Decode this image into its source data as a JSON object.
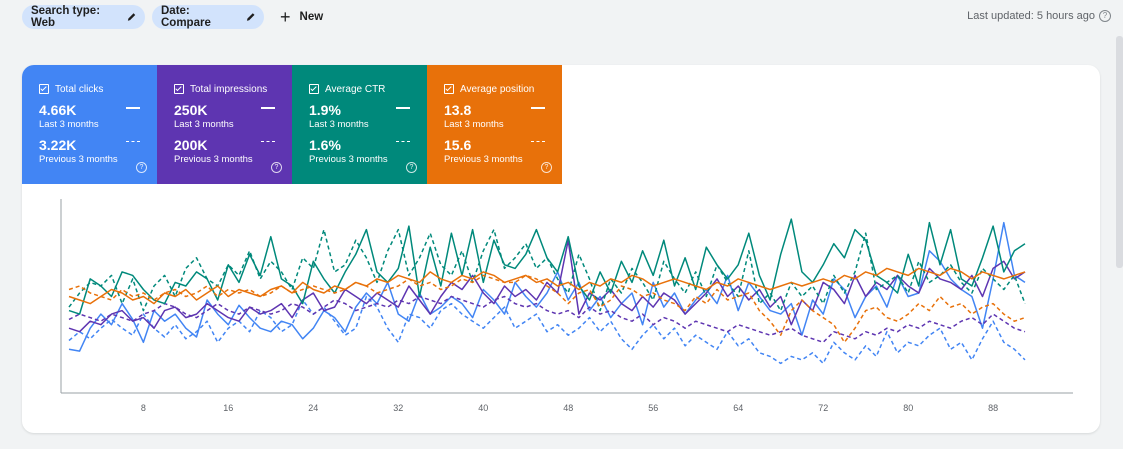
{
  "toolbar": {
    "search_type": "Search type: Web",
    "date": "Date: Compare",
    "new_label": "New",
    "last_updated": "Last updated: 5 hours ago"
  },
  "metrics": [
    {
      "label": "Total clicks",
      "current": "4.66K",
      "current_period": "Last 3 months",
      "previous": "3.22K",
      "previous_period": "Previous 3 months",
      "color": "#4285f4"
    },
    {
      "label": "Total impressions",
      "current": "250K",
      "current_period": "Last 3 months",
      "previous": "200K",
      "previous_period": "Previous 3 months",
      "color": "#5e35b1"
    },
    {
      "label": "Average CTR",
      "current": "1.9%",
      "current_period": "Last 3 months",
      "previous": "1.6%",
      "previous_period": "Previous 3 months",
      "color": "#00897b"
    },
    {
      "label": "Average position",
      "current": "13.8",
      "current_period": "Last 3 months",
      "previous": "15.6",
      "previous_period": "Previous 3 months",
      "color": "#e8710a"
    }
  ],
  "chart_data": {
    "type": "line",
    "x": [
      1,
      2,
      3,
      4,
      5,
      6,
      7,
      8,
      9,
      10,
      11,
      12,
      13,
      14,
      15,
      16,
      17,
      18,
      19,
      20,
      21,
      22,
      23,
      24,
      25,
      26,
      27,
      28,
      29,
      30,
      31,
      32,
      33,
      34,
      35,
      36,
      37,
      38,
      39,
      40,
      41,
      42,
      43,
      44,
      45,
      46,
      47,
      48,
      49,
      50,
      51,
      52,
      53,
      54,
      55,
      56,
      57,
      58,
      59,
      60,
      61,
      62,
      63,
      64,
      65,
      66,
      67,
      68,
      69,
      70,
      71,
      72,
      73,
      74,
      75,
      76,
      77,
      78,
      79,
      80,
      81,
      82,
      83,
      84,
      85,
      86,
      87,
      88,
      89,
      90,
      91
    ],
    "xticks": [
      "8",
      "16",
      "24",
      "32",
      "40",
      "48",
      "56",
      "64",
      "72",
      "80",
      "88"
    ],
    "xtick_values": [
      8,
      16,
      24,
      32,
      40,
      48,
      56,
      64,
      72,
      80,
      88
    ],
    "grid": false,
    "ylim": [
      0,
      100
    ],
    "y_axis_visible": false,
    "series": [
      {
        "metric": "Total clicks",
        "period": "current",
        "style": "solid",
        "color": "#4285f4",
        "values": [
          18,
          17,
          30,
          38,
          32,
          44,
          35,
          22,
          40,
          34,
          38,
          30,
          25,
          46,
          38,
          32,
          43,
          36,
          30,
          28,
          34,
          32,
          24,
          30,
          40,
          36,
          28,
          42,
          50,
          44,
          56,
          38,
          34,
          50,
          38,
          42,
          48,
          44,
          36,
          52,
          46,
          38,
          56,
          48,
          42,
          50,
          62,
          46,
          56,
          40,
          48,
          36,
          44,
          50,
          32,
          56,
          42,
          50,
          38,
          46,
          52,
          44,
          60,
          40,
          56,
          48,
          40,
          38,
          44,
          26,
          46,
          38,
          58,
          52,
          36,
          48,
          54,
          42,
          60,
          48,
          50,
          74,
          68,
          58,
          52,
          48,
          30,
          58,
          90,
          60,
          56
        ]
      },
      {
        "metric": "Total clicks",
        "period": "previous",
        "style": "dashed",
        "color": "#4285f4",
        "values": [
          23,
          28,
          24,
          30,
          35,
          30,
          26,
          38,
          30,
          25,
          32,
          24,
          28,
          34,
          22,
          30,
          34,
          28,
          40,
          36,
          28,
          32,
          46,
          38,
          42,
          34,
          26,
          30,
          48,
          42,
          30,
          22,
          38,
          36,
          30,
          40,
          44,
          38,
          34,
          30,
          36,
          42,
          30,
          34,
          38,
          28,
          32,
          26,
          30,
          36,
          28,
          34,
          24,
          18,
          26,
          32,
          24,
          30,
          20,
          26,
          22,
          18,
          28,
          20,
          24,
          16,
          14,
          10,
          14,
          12,
          16,
          10,
          22,
          16,
          12,
          20,
          14,
          28,
          16,
          22,
          20,
          26,
          30,
          18,
          22,
          12,
          24,
          34,
          22,
          18,
          12
        ]
      },
      {
        "metric": "Total impressions",
        "period": "current",
        "style": "solid",
        "color": "#5e35b1",
        "values": [
          30,
          28,
          34,
          32,
          38,
          40,
          34,
          36,
          30,
          40,
          42,
          36,
          38,
          44,
          40,
          36,
          34,
          42,
          38,
          40,
          44,
          36,
          46,
          50,
          40,
          42,
          52,
          48,
          44,
          50,
          46,
          42,
          54,
          46,
          38,
          48,
          56,
          52,
          60,
          50,
          44,
          54,
          48,
          52,
          46,
          56,
          50,
          80,
          38,
          50,
          46,
          52,
          44,
          40,
          48,
          42,
          50,
          46,
          38,
          44,
          50,
          58,
          48,
          54,
          46,
          52,
          42,
          48,
          32,
          46,
          40,
          56,
          52,
          44,
          60,
          48,
          56,
          52,
          60,
          54,
          50,
          64,
          58,
          56,
          52,
          60,
          48,
          64,
          68,
          58,
          62
        ]
      },
      {
        "metric": "Total impressions",
        "period": "previous",
        "style": "dashed",
        "color": "#5e35b1",
        "values": [
          35,
          38,
          36,
          34,
          38,
          36,
          34,
          38,
          40,
          44,
          42,
          38,
          36,
          40,
          44,
          40,
          38,
          42,
          40,
          38,
          40,
          44,
          42,
          38,
          42,
          46,
          44,
          40,
          42,
          44,
          42,
          46,
          44,
          48,
          46,
          44,
          48,
          46,
          44,
          42,
          46,
          48,
          44,
          42,
          44,
          40,
          38,
          40,
          36,
          42,
          38,
          40,
          36,
          34,
          38,
          32,
          36,
          34,
          30,
          34,
          32,
          30,
          28,
          32,
          30,
          28,
          26,
          28,
          30,
          26,
          24,
          22,
          28,
          26,
          24,
          28,
          26,
          30,
          28,
          32,
          30,
          34,
          32,
          30,
          34,
          36,
          32,
          38,
          34,
          30,
          28
        ]
      },
      {
        "metric": "Average CTR",
        "period": "current",
        "style": "solid",
        "color": "#00897b",
        "values": [
          40,
          38,
          58,
          54,
          48,
          62,
          60,
          52,
          46,
          44,
          56,
          54,
          62,
          58,
          46,
          66,
          56,
          72,
          60,
          82,
          58,
          54,
          44,
          68,
          58,
          50,
          62,
          72,
          86,
          62,
          56,
          64,
          88,
          48,
          76,
          54,
          84,
          60,
          86,
          56,
          80,
          66,
          64,
          72,
          86,
          70,
          62,
          82,
          54,
          46,
          62,
          50,
          68,
          56,
          74,
          60,
          80,
          54,
          70,
          52,
          76,
          66,
          58,
          66,
          84,
          60,
          46,
          72,
          92,
          62,
          56,
          66,
          78,
          70,
          86,
          80,
          60,
          56,
          50,
          72,
          54,
          90,
          66,
          86,
          58,
          54,
          70,
          88,
          62,
          74,
          78
        ]
      },
      {
        "metric": "Average CTR",
        "period": "previous",
        "style": "dashed",
        "color": "#00897b",
        "values": [
          42,
          50,
          56,
          54,
          60,
          44,
          58,
          40,
          54,
          60,
          48,
          64,
          70,
          58,
          54,
          66,
          60,
          74,
          58,
          68,
          62,
          52,
          70,
          64,
          86,
          62,
          66,
          80,
          70,
          56,
          74,
          86,
          60,
          70,
          84,
          66,
          60,
          74,
          56,
          74,
          86,
          64,
          70,
          78,
          64,
          70,
          58,
          50,
          72,
          58,
          40,
          58,
          50,
          64,
          56,
          46,
          68,
          58,
          50,
          62,
          48,
          66,
          56,
          48,
          74,
          44,
          50,
          40,
          56,
          48,
          54,
          44,
          60,
          50,
          62,
          84,
          52,
          56,
          60,
          50,
          68,
          56,
          60,
          66,
          56,
          50,
          64,
          58,
          52,
          60,
          44
        ]
      },
      {
        "metric": "Average position",
        "period": "current",
        "style": "solid",
        "color": "#e8710a",
        "values": [
          48,
          46,
          44,
          48,
          52,
          50,
          46,
          48,
          44,
          50,
          48,
          52,
          46,
          50,
          54,
          48,
          52,
          50,
          48,
          52,
          54,
          50,
          56,
          52,
          50,
          54,
          52,
          56,
          54,
          58,
          56,
          60,
          58,
          56,
          62,
          58,
          56,
          60,
          58,
          62,
          60,
          56,
          58,
          60,
          56,
          58,
          54,
          56,
          52,
          56,
          54,
          58,
          56,
          60,
          58,
          54,
          56,
          58,
          56,
          54,
          52,
          56,
          54,
          58,
          56,
          54,
          52,
          54,
          56,
          54,
          56,
          58,
          56,
          60,
          58,
          62,
          60,
          64,
          62,
          60,
          64,
          62,
          60,
          64,
          62,
          58,
          62,
          60,
          58,
          60,
          62
        ]
      },
      {
        "metric": "Average position",
        "period": "previous",
        "style": "dashed",
        "color": "#e8710a",
        "values": [
          52,
          54,
          50,
          48,
          46,
          52,
          48,
          50,
          46,
          50,
          52,
          48,
          50,
          54,
          48,
          52,
          50,
          52,
          48,
          50,
          54,
          50,
          52,
          54,
          52,
          50,
          52,
          56,
          54,
          50,
          52,
          54,
          58,
          54,
          56,
          52,
          54,
          58,
          56,
          60,
          58,
          56,
          56,
          60,
          58,
          54,
          50,
          44,
          50,
          52,
          42,
          46,
          54,
          52,
          48,
          50,
          46,
          44,
          40,
          48,
          44,
          52,
          46,
          48,
          50,
          40,
          34,
          26,
          40,
          46,
          40,
          36,
          32,
          22,
          30,
          40,
          42,
          36,
          34,
          38,
          44,
          40,
          48,
          42,
          44,
          38,
          42,
          44,
          38,
          34,
          36
        ]
      }
    ]
  }
}
